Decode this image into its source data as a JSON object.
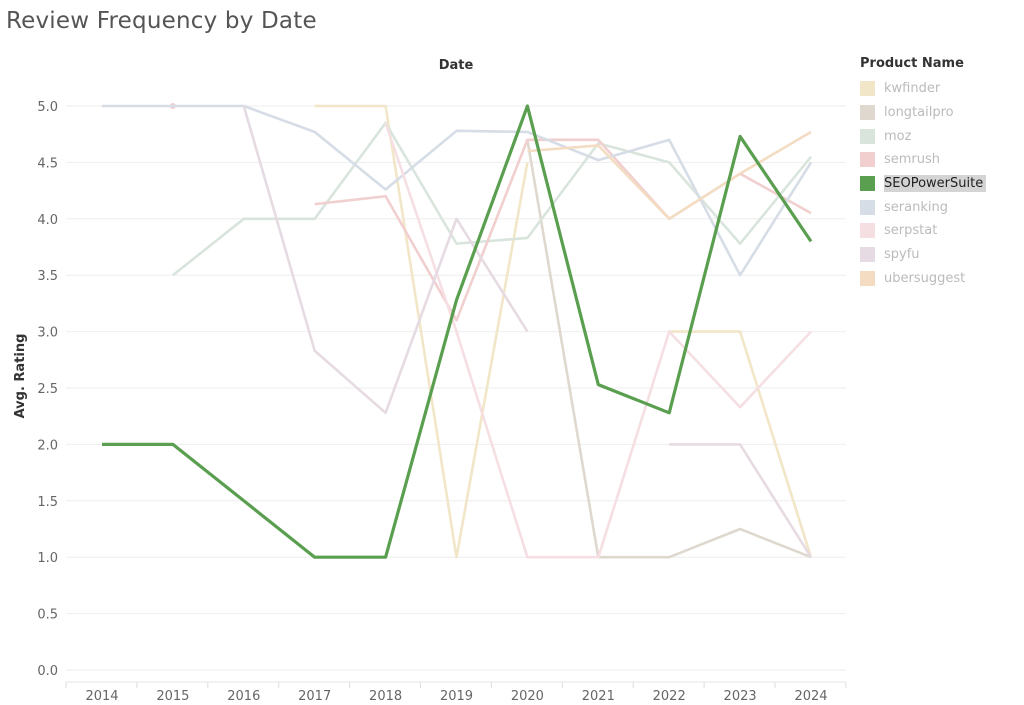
{
  "title": "Review Frequency by Date",
  "colors": {
    "kwfinder": "#f2e6c8",
    "longtailpro": "#dfd8cf",
    "moz": "#d9e5dc",
    "semrush": "#f1cfcf",
    "SEOPowerSuite": "#5a9e4f",
    "seranking": "#d6dde6",
    "serpstat": "#f5dfe3",
    "spyfu": "#e6dbe2",
    "ubersuggest": "#f4dcc2"
  },
  "legend": {
    "title": "Product Name",
    "items": [
      "kwfinder",
      "longtailpro",
      "moz",
      "semrush",
      "SEOPowerSuite",
      "seranking",
      "serpstat",
      "spyfu",
      "ubersuggest"
    ],
    "highlighted": "SEOPowerSuite"
  },
  "chart_data": {
    "type": "line",
    "title": "Review Frequency by Date",
    "xlabel": "Date",
    "ylabel": "Avg. Rating",
    "x": [
      "2014",
      "2015",
      "2016",
      "2017",
      "2018",
      "2019",
      "2020",
      "2021",
      "2022",
      "2023",
      "2024"
    ],
    "ylim": [
      0,
      5
    ],
    "yticks": [
      "0.0",
      "0.5",
      "1.0",
      "1.5",
      "2.0",
      "2.5",
      "3.0",
      "3.5",
      "4.0",
      "4.5",
      "5.0"
    ],
    "grid": true,
    "legend_position": "right",
    "series": [
      {
        "name": "kwfinder",
        "values": [
          null,
          null,
          null,
          5.0,
          5.0,
          1.0,
          4.5,
          null,
          3.0,
          3.0,
          1.0
        ]
      },
      {
        "name": "longtailpro",
        "values": [
          null,
          null,
          null,
          null,
          null,
          null,
          4.7,
          1.0,
          1.0,
          1.25,
          1.0
        ]
      },
      {
        "name": "moz",
        "values": [
          null,
          3.5,
          4.0,
          4.0,
          4.85,
          3.78,
          3.83,
          4.67,
          4.5,
          3.78,
          4.55
        ]
      },
      {
        "name": "semrush",
        "values": [
          null,
          5.0,
          null,
          4.13,
          4.2,
          3.1,
          4.7,
          4.7,
          4.0,
          4.4,
          4.05
        ]
      },
      {
        "name": "seranking",
        "values": [
          5.0,
          5.0,
          5.0,
          4.77,
          4.26,
          4.78,
          4.77,
          4.52,
          4.7,
          3.5,
          4.5
        ]
      },
      {
        "name": "serpstat",
        "values": [
          null,
          null,
          null,
          null,
          4.85,
          3.0,
          1.0,
          1.0,
          3.0,
          2.33,
          3.0
        ]
      },
      {
        "name": "spyfu",
        "values": [
          null,
          null,
          5.0,
          2.83,
          2.28,
          4.0,
          3.0,
          null,
          2.0,
          2.0,
          1.0
        ]
      },
      {
        "name": "ubersuggest",
        "values": [
          null,
          null,
          null,
          null,
          null,
          null,
          4.6,
          4.65,
          4.0,
          4.4,
          4.77
        ]
      },
      {
        "name": "SEOPowerSuite",
        "values": [
          2.0,
          2.0,
          1.5,
          1.0,
          1.0,
          3.28,
          5.0,
          2.53,
          2.28,
          4.73,
          3.8
        ]
      }
    ]
  }
}
